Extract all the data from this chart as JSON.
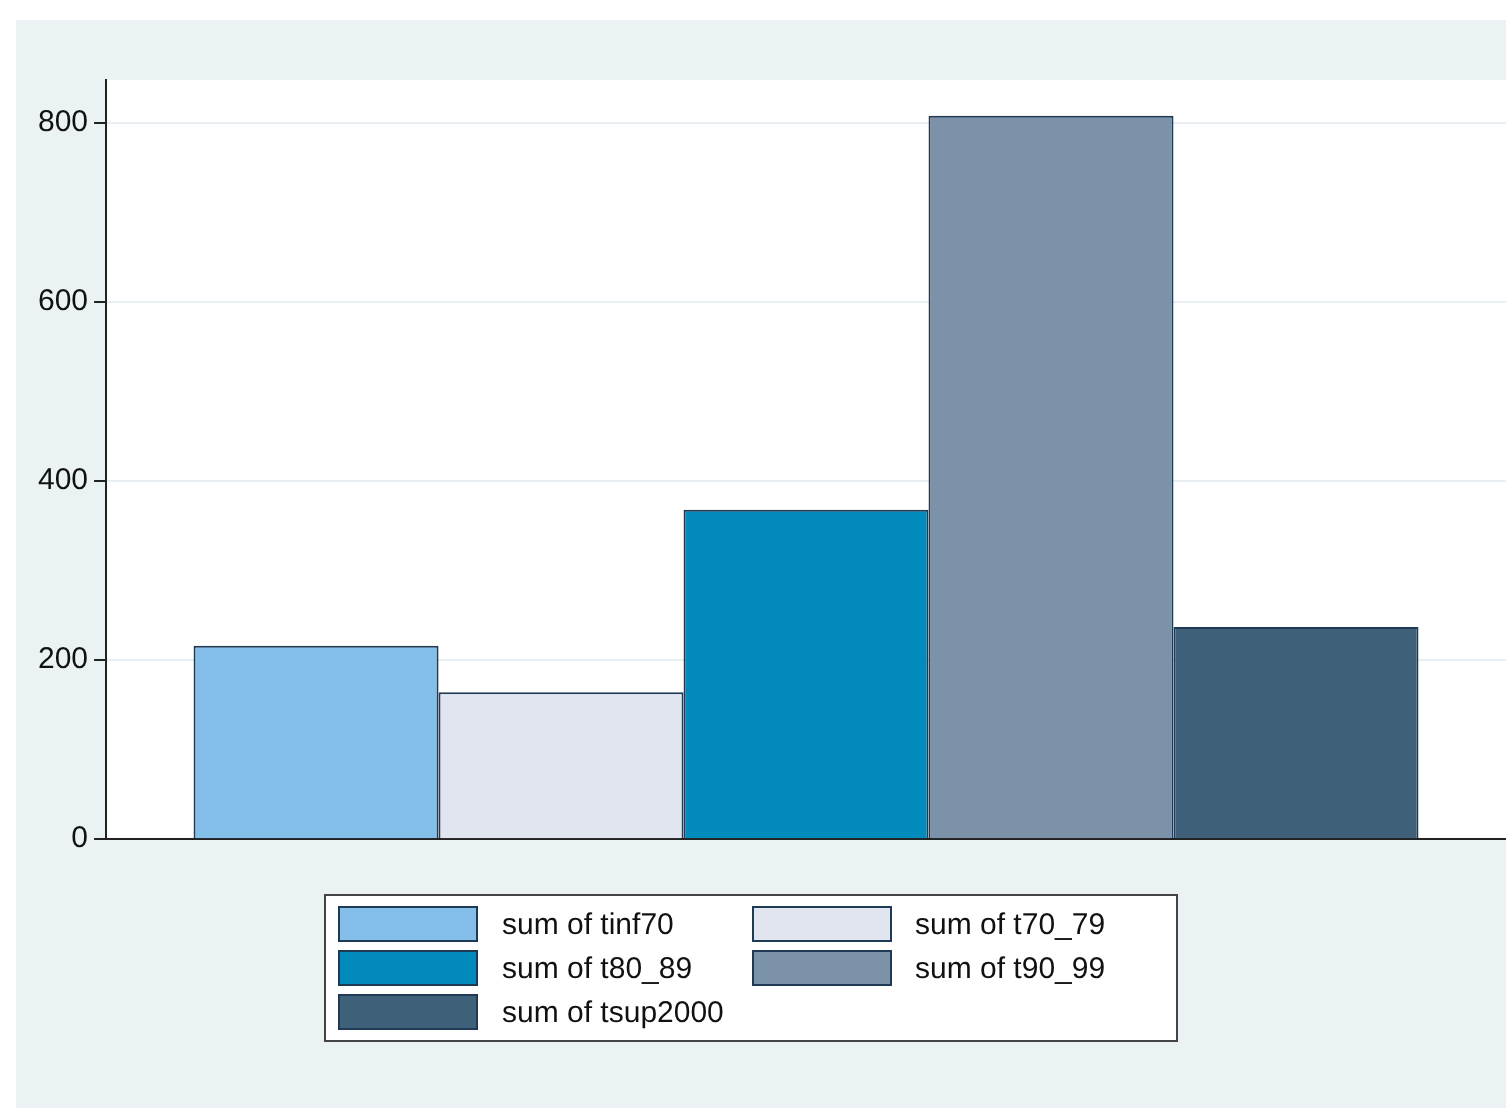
{
  "chart_data": {
    "type": "bar",
    "categories": [
      null
    ],
    "series": [
      {
        "name": "sum of tinf70",
        "color": "#83bfe9",
        "values": [
          216
        ]
      },
      {
        "name": "sum of t70_79",
        "color": "#e1e5f0",
        "values": [
          164
        ]
      },
      {
        "name": "sum of t80_89",
        "color": "#038abd",
        "values": [
          368
        ]
      },
      {
        "name": "sum of t90_99",
        "color": "#7c92a9",
        "values": [
          808
        ]
      },
      {
        "name": "sum of tsup2000",
        "color": "#3e6079",
        "values": [
          237
        ]
      }
    ],
    "ylim": [
      0,
      848
    ],
    "yticks": [
      0,
      200,
      400,
      600,
      800
    ],
    "grid": "y",
    "legend": "bottom"
  }
}
